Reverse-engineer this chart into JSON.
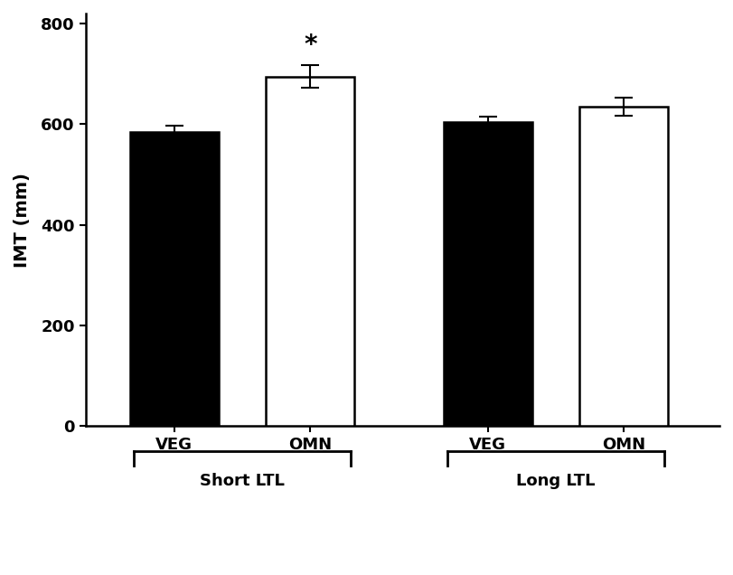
{
  "categories": [
    "VEG",
    "OMN",
    "VEG",
    "OMN"
  ],
  "values": [
    585,
    695,
    605,
    635
  ],
  "errors": [
    12,
    22,
    10,
    18
  ],
  "bar_colors": [
    "#000000",
    "#ffffff",
    "#000000",
    "#ffffff"
  ],
  "bar_edgecolors": [
    "#000000",
    "#000000",
    "#000000",
    "#000000"
  ],
  "ylabel": "IMT (mm)",
  "ylim": [
    0,
    820
  ],
  "yticks": [
    0,
    200,
    400,
    600,
    800
  ],
  "group_labels": [
    "Short LTL",
    "Long LTL"
  ],
  "significance_bar_idx": 1,
  "significance_label": "*",
  "background_color": "#ffffff",
  "bar_width": 0.65,
  "positions": [
    1.0,
    2.0,
    3.3,
    4.3
  ]
}
